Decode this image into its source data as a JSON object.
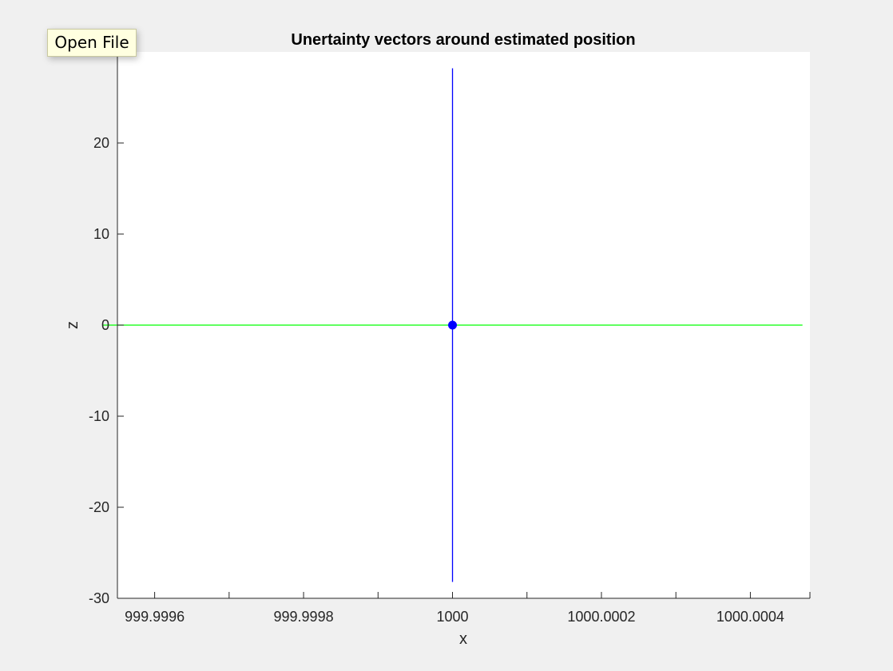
{
  "tooltip": {
    "text": "Open File"
  },
  "chart_data": {
    "type": "line",
    "title": "Unertainty vectors around estimated position",
    "xlabel": "x",
    "ylabel": "z",
    "xlim": [
      999.99955,
      1000.00048
    ],
    "ylim": [
      -30,
      30
    ],
    "x_ticks": [
      {
        "value": 999.9996,
        "label": "999.9996"
      },
      {
        "value": 999.9998,
        "label": "999.9998"
      },
      {
        "value": 1000.0,
        "label": "1000"
      },
      {
        "value": 1000.0002,
        "label": "1000.0002"
      },
      {
        "value": 1000.0004,
        "label": "1000.0004"
      }
    ],
    "x_minor_ticks": [
      999.9997,
      999.9999,
      1000.0001,
      1000.0003
    ],
    "y_ticks": [
      {
        "value": -30,
        "label": "-30"
      },
      {
        "value": -20,
        "label": "-20"
      },
      {
        "value": -10,
        "label": "-10"
      },
      {
        "value": 0,
        "label": "0"
      },
      {
        "value": 10,
        "label": "10"
      },
      {
        "value": 20,
        "label": "20"
      },
      {
        "value": 30,
        "label": "30"
      }
    ],
    "grid": false,
    "series": [
      {
        "kind": "line",
        "color": "#0000ff",
        "x": [
          1000.0,
          1000.0
        ],
        "y": [
          -28.2,
          28.2
        ]
      },
      {
        "kind": "line",
        "color": "#00ff00",
        "x": [
          999.99953,
          1000.00047
        ],
        "y": [
          0,
          0
        ]
      },
      {
        "kind": "point",
        "color": "#0000ff",
        "x": [
          1000.0
        ],
        "y": [
          0
        ]
      }
    ]
  }
}
